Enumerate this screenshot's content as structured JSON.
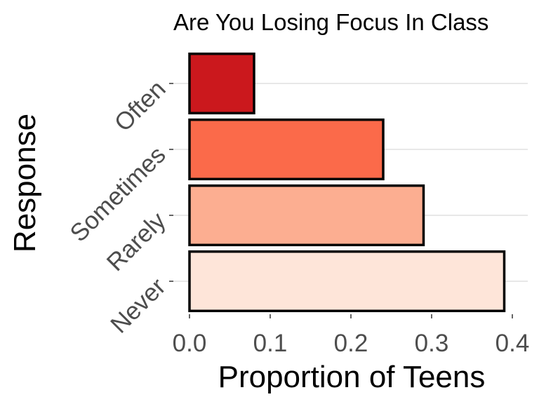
{
  "chart_data": {
    "type": "bar",
    "orientation": "horizontal",
    "title": "Are You Losing Focus In Class",
    "xlabel": "Proportion of Teens",
    "ylabel": "Response",
    "categories": [
      "Often",
      "Sometimes",
      "Rarely",
      "Never"
    ],
    "values": [
      0.08,
      0.24,
      0.29,
      0.39
    ],
    "colors": [
      "#cb181d",
      "#fb6a4a",
      "#fcae91",
      "#fee5d9"
    ],
    "bar_outline_color": "#000000",
    "xlim": [
      0,
      0.4
    ],
    "x_ticks": [
      "0.0",
      "0.1",
      "0.2",
      "0.3",
      "0.4"
    ],
    "grid": "horizontal major",
    "grid_color": "#d9d9d9",
    "legend": "none"
  }
}
